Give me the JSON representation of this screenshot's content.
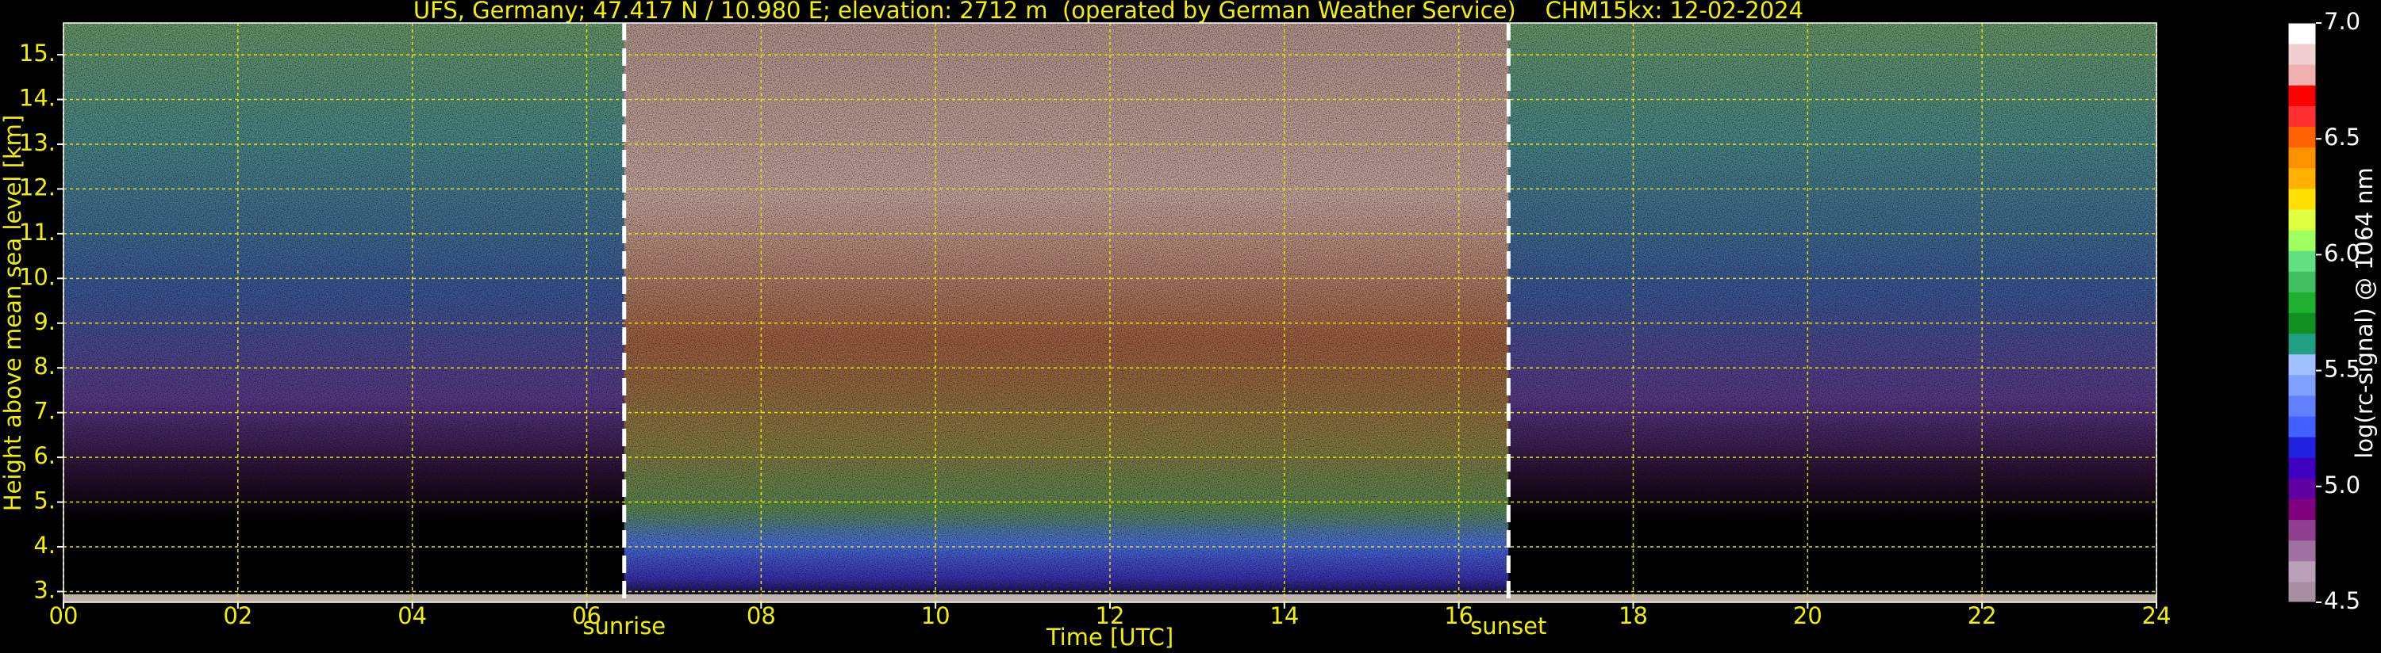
{
  "chart_data": {
    "type": "heatmap",
    "title": "UFS, Germany; 47.417 N / 10.980 E; elevation: 2712 m  (operated by German Weather Service)    CHM15kx: 12-02-2024",
    "xlabel": "Time [UTC]",
    "ylabel": "Height above mean sea level [km]",
    "xlim": [
      0,
      24
    ],
    "xticks": [
      {
        "value": 0,
        "label": "00"
      },
      {
        "value": 2,
        "label": "02"
      },
      {
        "value": 4,
        "label": "04"
      },
      {
        "value": 6,
        "label": "06"
      },
      {
        "value": 8,
        "label": "08"
      },
      10,
      12,
      14,
      16,
      18,
      20,
      22,
      24
    ],
    "ylim": [
      2.76,
      15.71
    ],
    "yticks": [
      {
        "value": 3,
        "label": "3."
      },
      {
        "value": 4,
        "label": "4."
      },
      {
        "value": 5,
        "label": "5."
      },
      {
        "value": 6,
        "label": "6."
      },
      {
        "value": 7,
        "label": "7."
      },
      {
        "value": 8,
        "label": "8."
      },
      {
        "value": 9,
        "label": "9."
      },
      {
        "value": 10,
        "label": "10."
      },
      {
        "value": 11,
        "label": "11."
      },
      {
        "value": 12,
        "label": "12."
      },
      {
        "value": 13,
        "label": "13."
      },
      {
        "value": 14,
        "label": "14."
      },
      {
        "value": 15,
        "label": "15."
      }
    ],
    "grid": true,
    "grid_color": "#e6e600",
    "annotations": [
      {
        "text": "sunrise",
        "x": 6.43
      },
      {
        "text": "sunset",
        "x": 16.57
      }
    ],
    "colorbar": {
      "label": "log(rc-signal) @ 1064 nm",
      "clim": [
        4.5,
        7.0
      ],
      "ticks": [
        4.5,
        {
          "value": 5,
          "label": "5.0"
        },
        5.5,
        {
          "value": 6,
          "label": "6.0"
        },
        6.5,
        {
          "value": 7,
          "label": "7.0"
        }
      ],
      "colors": [
        "#a890a0",
        "#b8a0b8",
        "#a070a0",
        "#904090",
        "#800080",
        "#6000a0",
        "#4000c0",
        "#2020e0",
        "#4060ff",
        "#6080ff",
        "#80a0ff",
        "#a0c0ff",
        "#20a080",
        "#109020",
        "#20b030",
        "#40c060",
        "#60e080",
        "#a0ff60",
        "#e0ff40",
        "#ffe000",
        "#ffb000",
        "#ff9000",
        "#ff6000",
        "#ff3030",
        "#ff0000",
        "#f0b0b0",
        "#f0d0d0",
        "#ffffff"
      ]
    }
  }
}
